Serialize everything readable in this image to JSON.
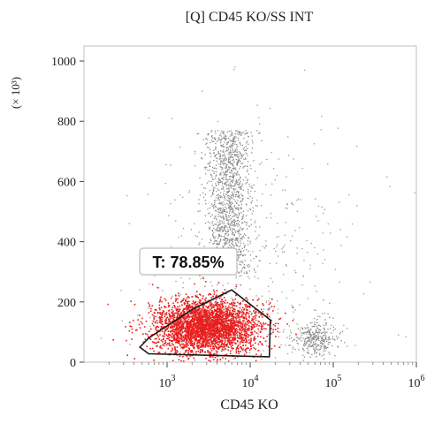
{
  "chart_data": {
    "type": "scatter",
    "title": "[Q] CD45 KO/SS INT",
    "xlabel": "CD45 KO",
    "ylabel_multiplier": "(× 10³)",
    "x_scale": "log",
    "xlim": [
      100,
      1000000
    ],
    "ylim": [
      0,
      1050
    ],
    "x_ticks": [
      {
        "value": 1000,
        "base": "10",
        "exp": "3"
      },
      {
        "value": 10000,
        "base": "10",
        "exp": "4"
      },
      {
        "value": 100000,
        "base": "10",
        "exp": "5"
      },
      {
        "value": 1000000,
        "base": "10",
        "exp": "6"
      }
    ],
    "y_ticks": [
      0,
      200,
      400,
      600,
      800,
      1000
    ],
    "grid": false,
    "gate": {
      "label": "T: 78.85%",
      "color": "#1a1a1a",
      "label_border_color": "#bbbbbb",
      "polygon": [
        [
          600,
          28
        ],
        [
          17000,
          18
        ],
        [
          17500,
          140
        ],
        [
          6000,
          240
        ],
        [
          2000,
          175
        ],
        [
          600,
          80
        ],
        [
          470,
          50
        ]
      ]
    },
    "populations": [
      {
        "name": "gated",
        "color": "#e8201e",
        "center": [
          3000,
          120
        ],
        "spread_decades": 0.32,
        "spread_y": 45,
        "count": 3200
      },
      {
        "name": "vertical-stream",
        "color": "#8c8c8c",
        "center": [
          5500,
          450
        ],
        "spread_decades": 0.14,
        "spread_y": 280,
        "count": 1300
      },
      {
        "name": "right-cluster",
        "color": "#8c8c8c",
        "center": [
          60000,
          80
        ],
        "spread_decades": 0.12,
        "spread_y": 30,
        "count": 320
      },
      {
        "name": "background",
        "color": "#9a9a9a",
        "center": [
          10000,
          300
        ],
        "spread_decades": 0.6,
        "spread_y": 250,
        "count": 500
      }
    ]
  }
}
